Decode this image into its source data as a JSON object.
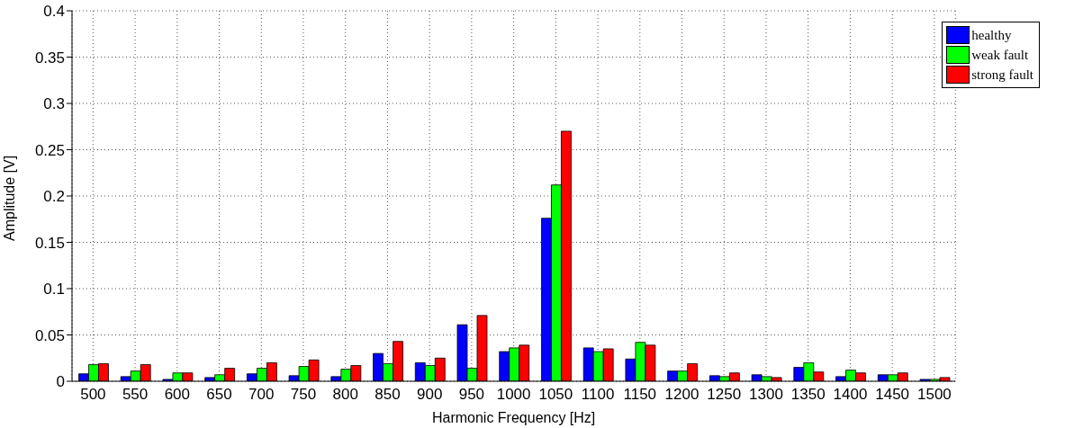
{
  "chart_data": {
    "type": "bar",
    "xlabel": "Harmonic Frequency [Hz]",
    "ylabel": "Amplitude [V]",
    "categories": [
      "500",
      "550",
      "600",
      "650",
      "700",
      "750",
      "800",
      "850",
      "900",
      "950",
      "1000",
      "1050",
      "1100",
      "1150",
      "1200",
      "1250",
      "1300",
      "1350",
      "1400",
      "1450",
      "1500"
    ],
    "series": [
      {
        "name": "healthy",
        "color": "#0000ff",
        "values": [
          0.008,
          0.005,
          0.002,
          0.004,
          0.008,
          0.006,
          0.005,
          0.03,
          0.02,
          0.061,
          0.032,
          0.176,
          0.036,
          0.024,
          0.011,
          0.006,
          0.007,
          0.015,
          0.005,
          0.007,
          0.002
        ]
      },
      {
        "name": "weak fault",
        "color": "#00ff00",
        "values": [
          0.018,
          0.011,
          0.009,
          0.007,
          0.014,
          0.016,
          0.013,
          0.019,
          0.017,
          0.014,
          0.036,
          0.212,
          0.032,
          0.042,
          0.011,
          0.005,
          0.005,
          0.02,
          0.012,
          0.007,
          0.002
        ]
      },
      {
        "name": "strong fault",
        "color": "#ff0000",
        "values": [
          0.019,
          0.018,
          0.009,
          0.014,
          0.02,
          0.023,
          0.017,
          0.043,
          0.025,
          0.071,
          0.039,
          0.27,
          0.035,
          0.039,
          0.019,
          0.009,
          0.004,
          0.01,
          0.009,
          0.009,
          0.004
        ]
      }
    ],
    "ylim": [
      0,
      0.4
    ],
    "yticks": [
      0,
      0.05,
      0.1,
      0.15,
      0.2,
      0.25,
      0.3,
      0.35,
      0.4
    ],
    "grid": true,
    "legend": "top right"
  }
}
